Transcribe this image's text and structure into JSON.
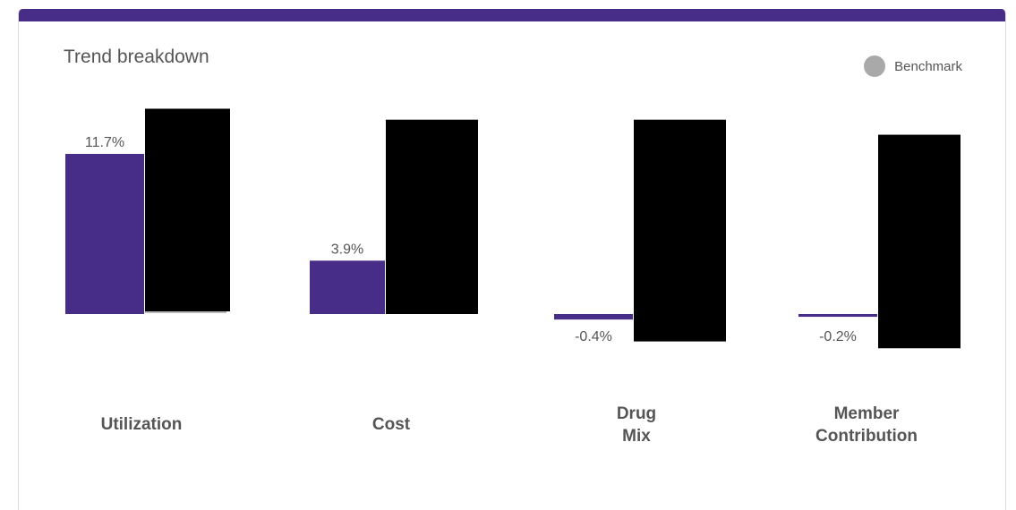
{
  "card": {
    "title": "Trend breakdown",
    "accent_color": "#472c88"
  },
  "legend": {
    "label": "Benchmark",
    "color": "#a9a9a9"
  },
  "chart_data": {
    "type": "bar",
    "title": "Trend breakdown",
    "categories": [
      "Utilization",
      "Cost",
      "Drug Mix",
      "Member Contribution"
    ],
    "series": [
      {
        "color": "#472c88",
        "values": [
          11.7,
          3.9,
          -0.4,
          -0.2
        ],
        "labels": [
          "11.7%",
          "3.9%",
          "-0.4%",
          "-0.2%"
        ]
      },
      {
        "name": "Benchmark",
        "color": "#000000",
        "redacted": true,
        "values": [
          15.0,
          14.2,
          16.2,
          15.6
        ],
        "offsets": [
          0.0,
          0.0,
          -2.0,
          -2.5
        ]
      }
    ],
    "xlabel": "",
    "ylabel": "",
    "ylim": [
      -3,
      16
    ],
    "grid": false,
    "legend_position": "top-right"
  }
}
